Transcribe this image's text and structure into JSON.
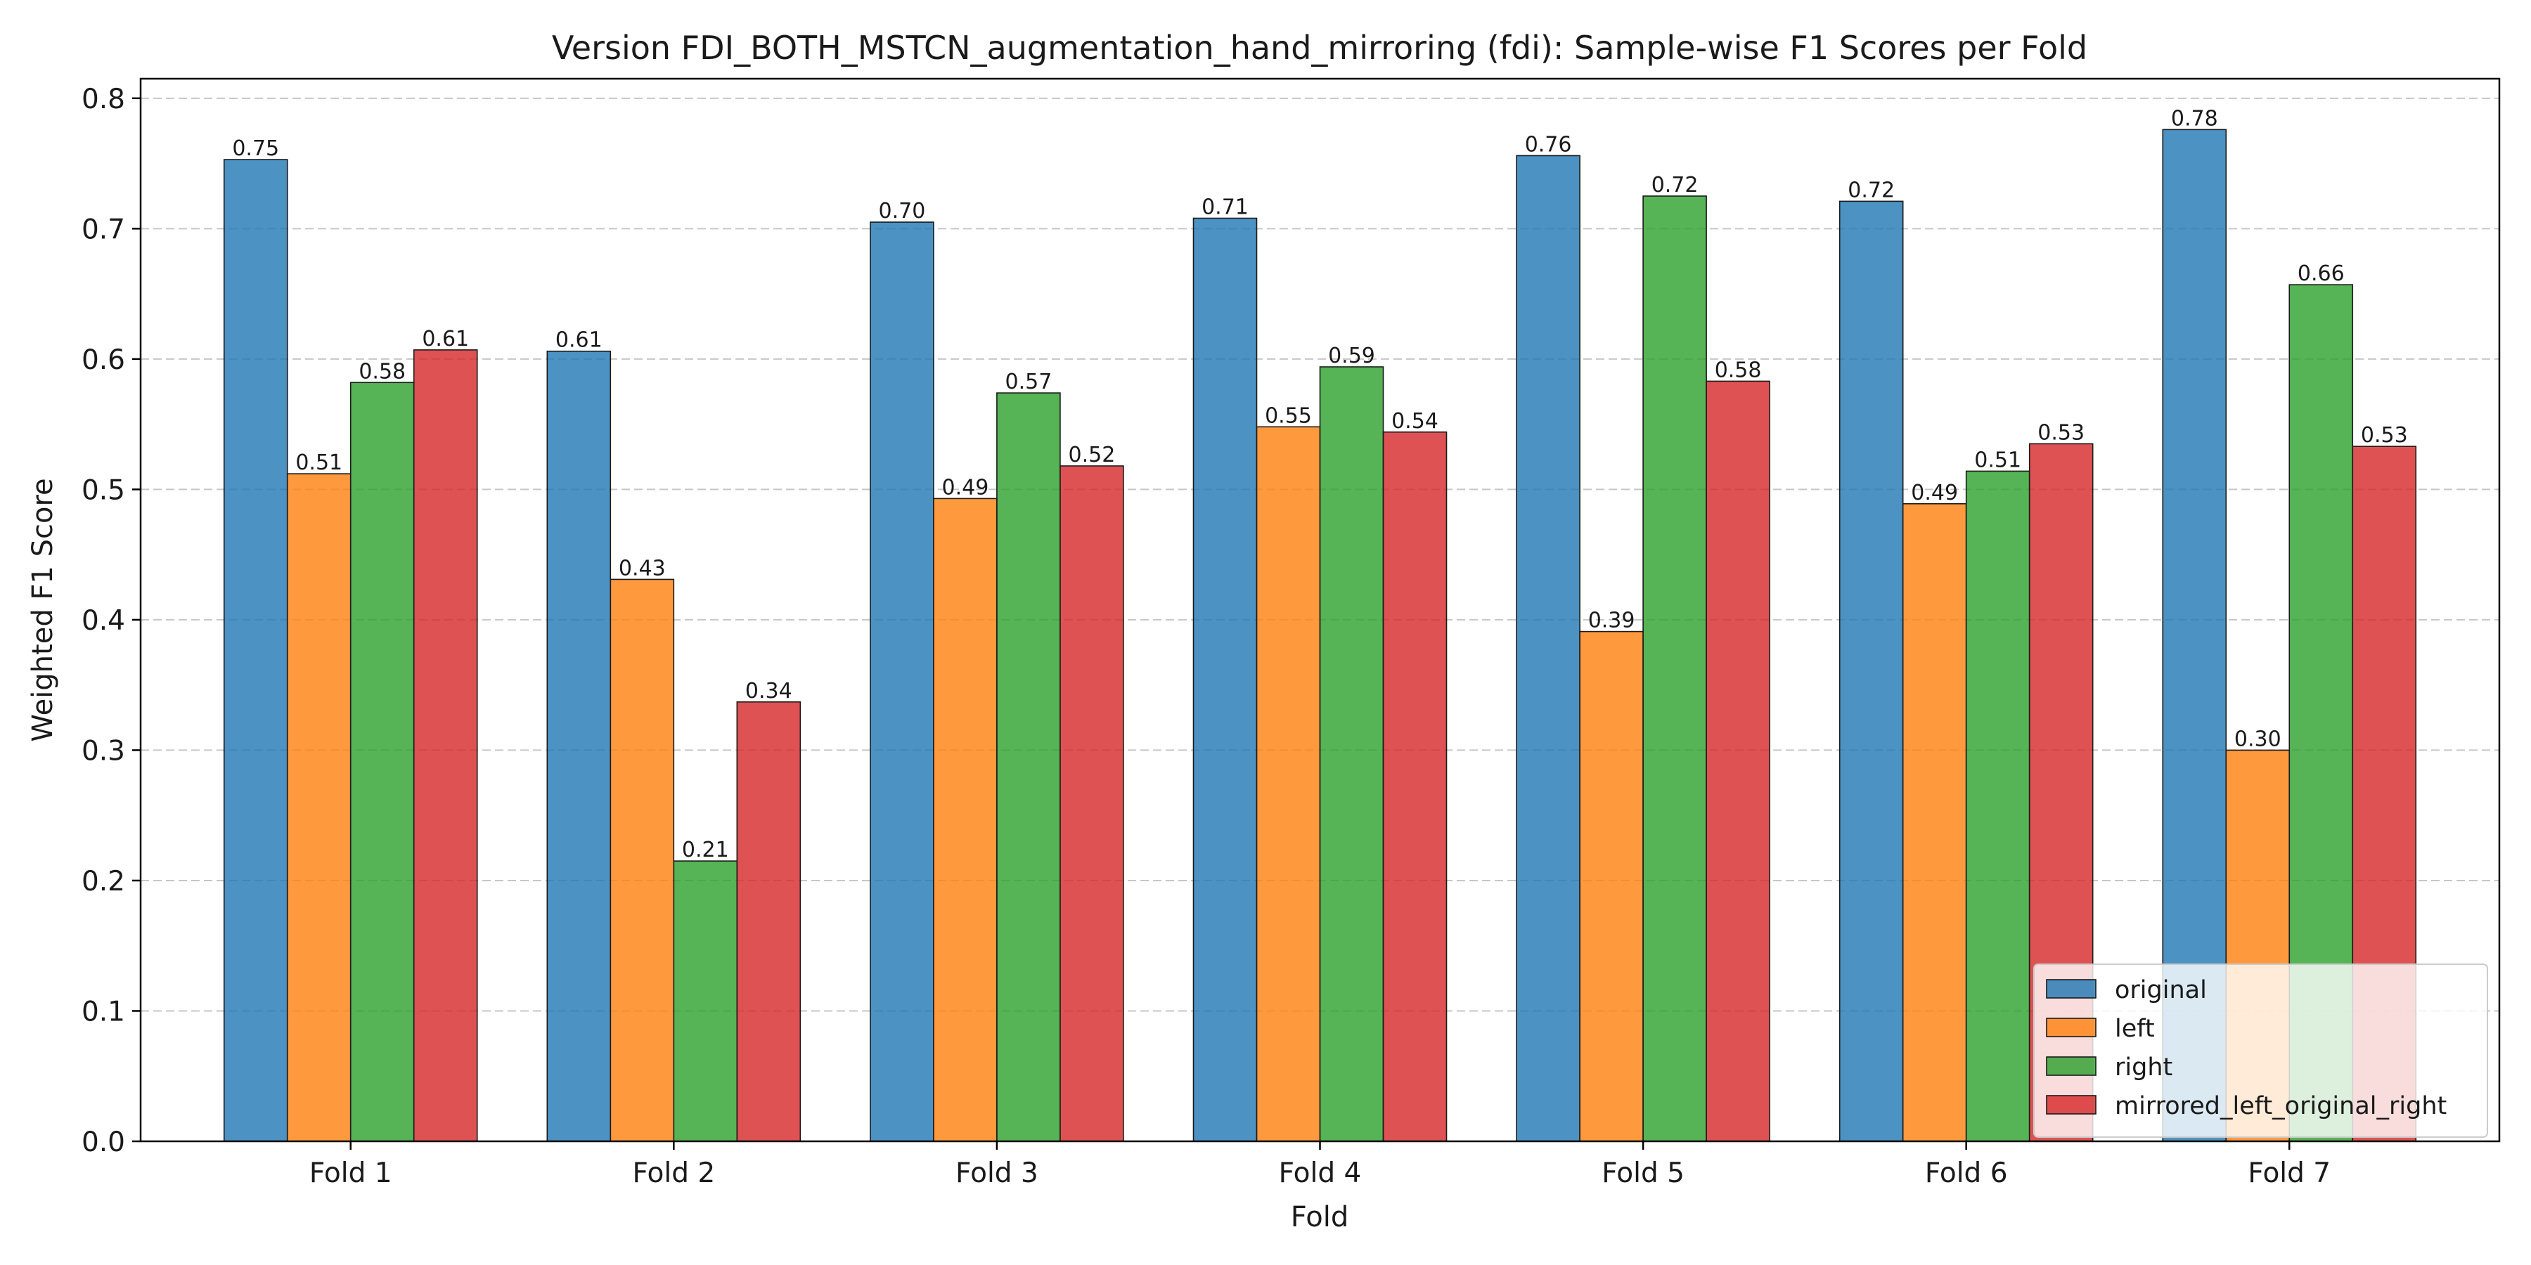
{
  "chart_data": {
    "type": "bar",
    "title": "Version FDI_BOTH_MSTCN_augmentation_hand_mirroring (fdi): Sample-wise F1 Scores per Fold",
    "xlabel": "Fold",
    "ylabel": "Weighted F1 Score",
    "categories": [
      "Fold 1",
      "Fold 2",
      "Fold 3",
      "Fold 4",
      "Fold 5",
      "Fold 6",
      "Fold 7"
    ],
    "ylim": [
      0,
      0.815
    ],
    "yticks": [
      "0.0",
      "0.1",
      "0.2",
      "0.3",
      "0.4",
      "0.5",
      "0.6",
      "0.7",
      "0.8"
    ],
    "grid": "y-dashed",
    "legend_position": "bottom-right",
    "series": [
      {
        "name": "original",
        "color": "#1f77b4",
        "values": [
          0.753,
          0.606,
          0.705,
          0.708,
          0.756,
          0.721,
          0.776
        ],
        "labels": [
          "0.75",
          "0.61",
          "0.70",
          "0.71",
          "0.76",
          "0.72",
          "0.78"
        ]
      },
      {
        "name": "left",
        "color": "#ff7f0e",
        "values": [
          0.512,
          0.431,
          0.493,
          0.548,
          0.391,
          0.489,
          0.3
        ],
        "labels": [
          "0.51",
          "0.43",
          "0.49",
          "0.55",
          "0.39",
          "0.49",
          "0.30"
        ]
      },
      {
        "name": "right",
        "color": "#2ca02c",
        "values": [
          0.582,
          0.215,
          0.574,
          0.594,
          0.725,
          0.514,
          0.657
        ],
        "labels": [
          "0.58",
          "0.21",
          "0.57",
          "0.59",
          "0.72",
          "0.51",
          "0.66"
        ]
      },
      {
        "name": "mirrored_left_original_right",
        "color": "#d62728",
        "values": [
          0.607,
          0.337,
          0.518,
          0.544,
          0.583,
          0.535,
          0.533
        ],
        "labels": [
          "0.61",
          "0.34",
          "0.52",
          "0.54",
          "0.58",
          "0.53",
          "0.53"
        ]
      }
    ]
  }
}
